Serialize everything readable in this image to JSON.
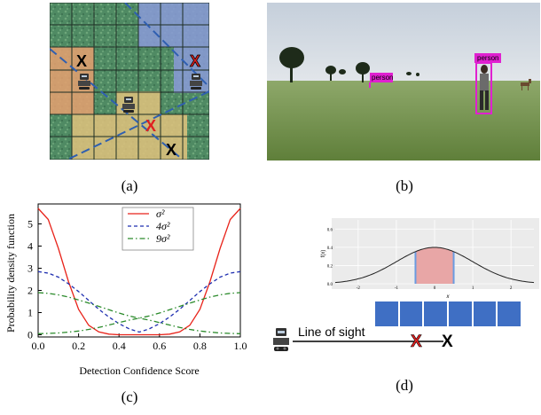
{
  "captions": {
    "a": "(a)",
    "b": "(b)",
    "c": "(c)",
    "d": "(d)"
  },
  "panel_a": {
    "markers": [
      "X",
      "X",
      "X",
      "X"
    ],
    "colors": {
      "grass": "#4f8a63",
      "blue_overlay": "#7f8fd0",
      "orange_overlay": "#e8a26a",
      "tan_overlay": "#e3c47e",
      "line": "#2f5fb0",
      "red": "#e02020"
    }
  },
  "panel_b": {
    "detections": [
      "person",
      "person"
    ],
    "colors": {
      "sky": "#cfd6df",
      "ground": "#6f8f46",
      "box": "#e020d0"
    }
  },
  "chart_data": {
    "type": "line",
    "xlabel": "Detection Confidence Score",
    "ylabel": "Probability density function",
    "xlim": [
      0.0,
      1.0
    ],
    "ylim": [
      -0.1,
      5.9
    ],
    "xticks": [
      "0.0",
      "0.2",
      "0.4",
      "0.6",
      "0.8",
      "1.0"
    ],
    "yticks": [
      "0",
      "1",
      "2",
      "3",
      "4",
      "5"
    ],
    "legend_position": "top-center",
    "series": [
      {
        "name": "σ²",
        "color": "#e8231a",
        "style": "solid",
        "x": [
          0.0,
          0.05,
          0.1,
          0.15,
          0.2,
          0.25,
          0.3,
          0.35,
          0.4,
          0.45,
          0.5,
          0.55,
          0.6,
          0.65,
          0.7,
          0.75,
          0.8,
          0.85,
          0.9,
          0.95,
          1.0
        ],
        "y": [
          5.7,
          5.2,
          3.9,
          2.4,
          1.15,
          0.43,
          0.13,
          0.03,
          0.0,
          0.0,
          0.0,
          0.0,
          0.0,
          0.03,
          0.13,
          0.43,
          1.15,
          2.4,
          3.9,
          5.2,
          5.7
        ]
      },
      {
        "name": "4σ²",
        "color": "#1f2fb0",
        "style": "dashed",
        "x": [
          0.0,
          0.05,
          0.1,
          0.15,
          0.2,
          0.25,
          0.3,
          0.35,
          0.4,
          0.45,
          0.5,
          0.55,
          0.6,
          0.65,
          0.7,
          0.75,
          0.8,
          0.85,
          0.9,
          0.95,
          1.0
        ],
        "y": [
          2.85,
          2.78,
          2.6,
          2.3,
          1.95,
          1.55,
          1.15,
          0.8,
          0.5,
          0.27,
          0.12,
          0.27,
          0.5,
          0.8,
          1.15,
          1.55,
          1.95,
          2.3,
          2.6,
          2.78,
          2.85
        ]
      },
      {
        "name": "9σ²",
        "color": "#2a8a2a",
        "style": "dashdot",
        "x": [
          0.0,
          0.05,
          0.1,
          0.15,
          0.2,
          0.25,
          0.3,
          0.35,
          0.4,
          0.45,
          0.5,
          0.55,
          0.6,
          0.65,
          0.7,
          0.75,
          0.8,
          0.85,
          0.9,
          0.95,
          1.0
        ],
        "y": [
          1.9,
          1.87,
          1.8,
          1.7,
          1.57,
          1.43,
          1.28,
          1.13,
          0.98,
          0.85,
          0.75,
          0.66,
          0.55,
          0.44,
          0.33,
          0.24,
          0.17,
          0.12,
          0.08,
          0.06,
          0.05
        ]
      },
      {
        "name": "9σ² (mirror)",
        "color": "#2a8a2a",
        "style": "dashdot",
        "legend": false,
        "x": [
          0.0,
          0.05,
          0.1,
          0.15,
          0.2,
          0.25,
          0.3,
          0.35,
          0.4,
          0.45,
          0.5,
          0.55,
          0.6,
          0.65,
          0.7,
          0.75,
          0.8,
          0.85,
          0.9,
          0.95,
          1.0
        ],
        "y": [
          0.05,
          0.06,
          0.08,
          0.12,
          0.17,
          0.24,
          0.33,
          0.44,
          0.55,
          0.66,
          0.75,
          0.85,
          0.98,
          1.13,
          1.28,
          1.43,
          1.57,
          1.7,
          1.8,
          1.87,
          1.9
        ]
      }
    ]
  },
  "panel_d": {
    "gauss": {
      "ylabel": "f(x)",
      "xlabel": "x",
      "xticks": [
        "-2",
        "-1",
        "0",
        "1",
        "2"
      ],
      "yticks": [
        "0.0",
        "0.2",
        "0.4",
        "0.6"
      ],
      "shaded_interval": [
        -0.5,
        0.5
      ],
      "colors": {
        "bg": "#ebebeb",
        "shade": "#e8a6a6",
        "edge": "#6a9be0",
        "curve": "#222222"
      }
    },
    "cells_count": 6,
    "cell_color": "#3f6fc4",
    "line_of_sight_label": "Line of sight",
    "markers": [
      "X",
      "X"
    ]
  }
}
